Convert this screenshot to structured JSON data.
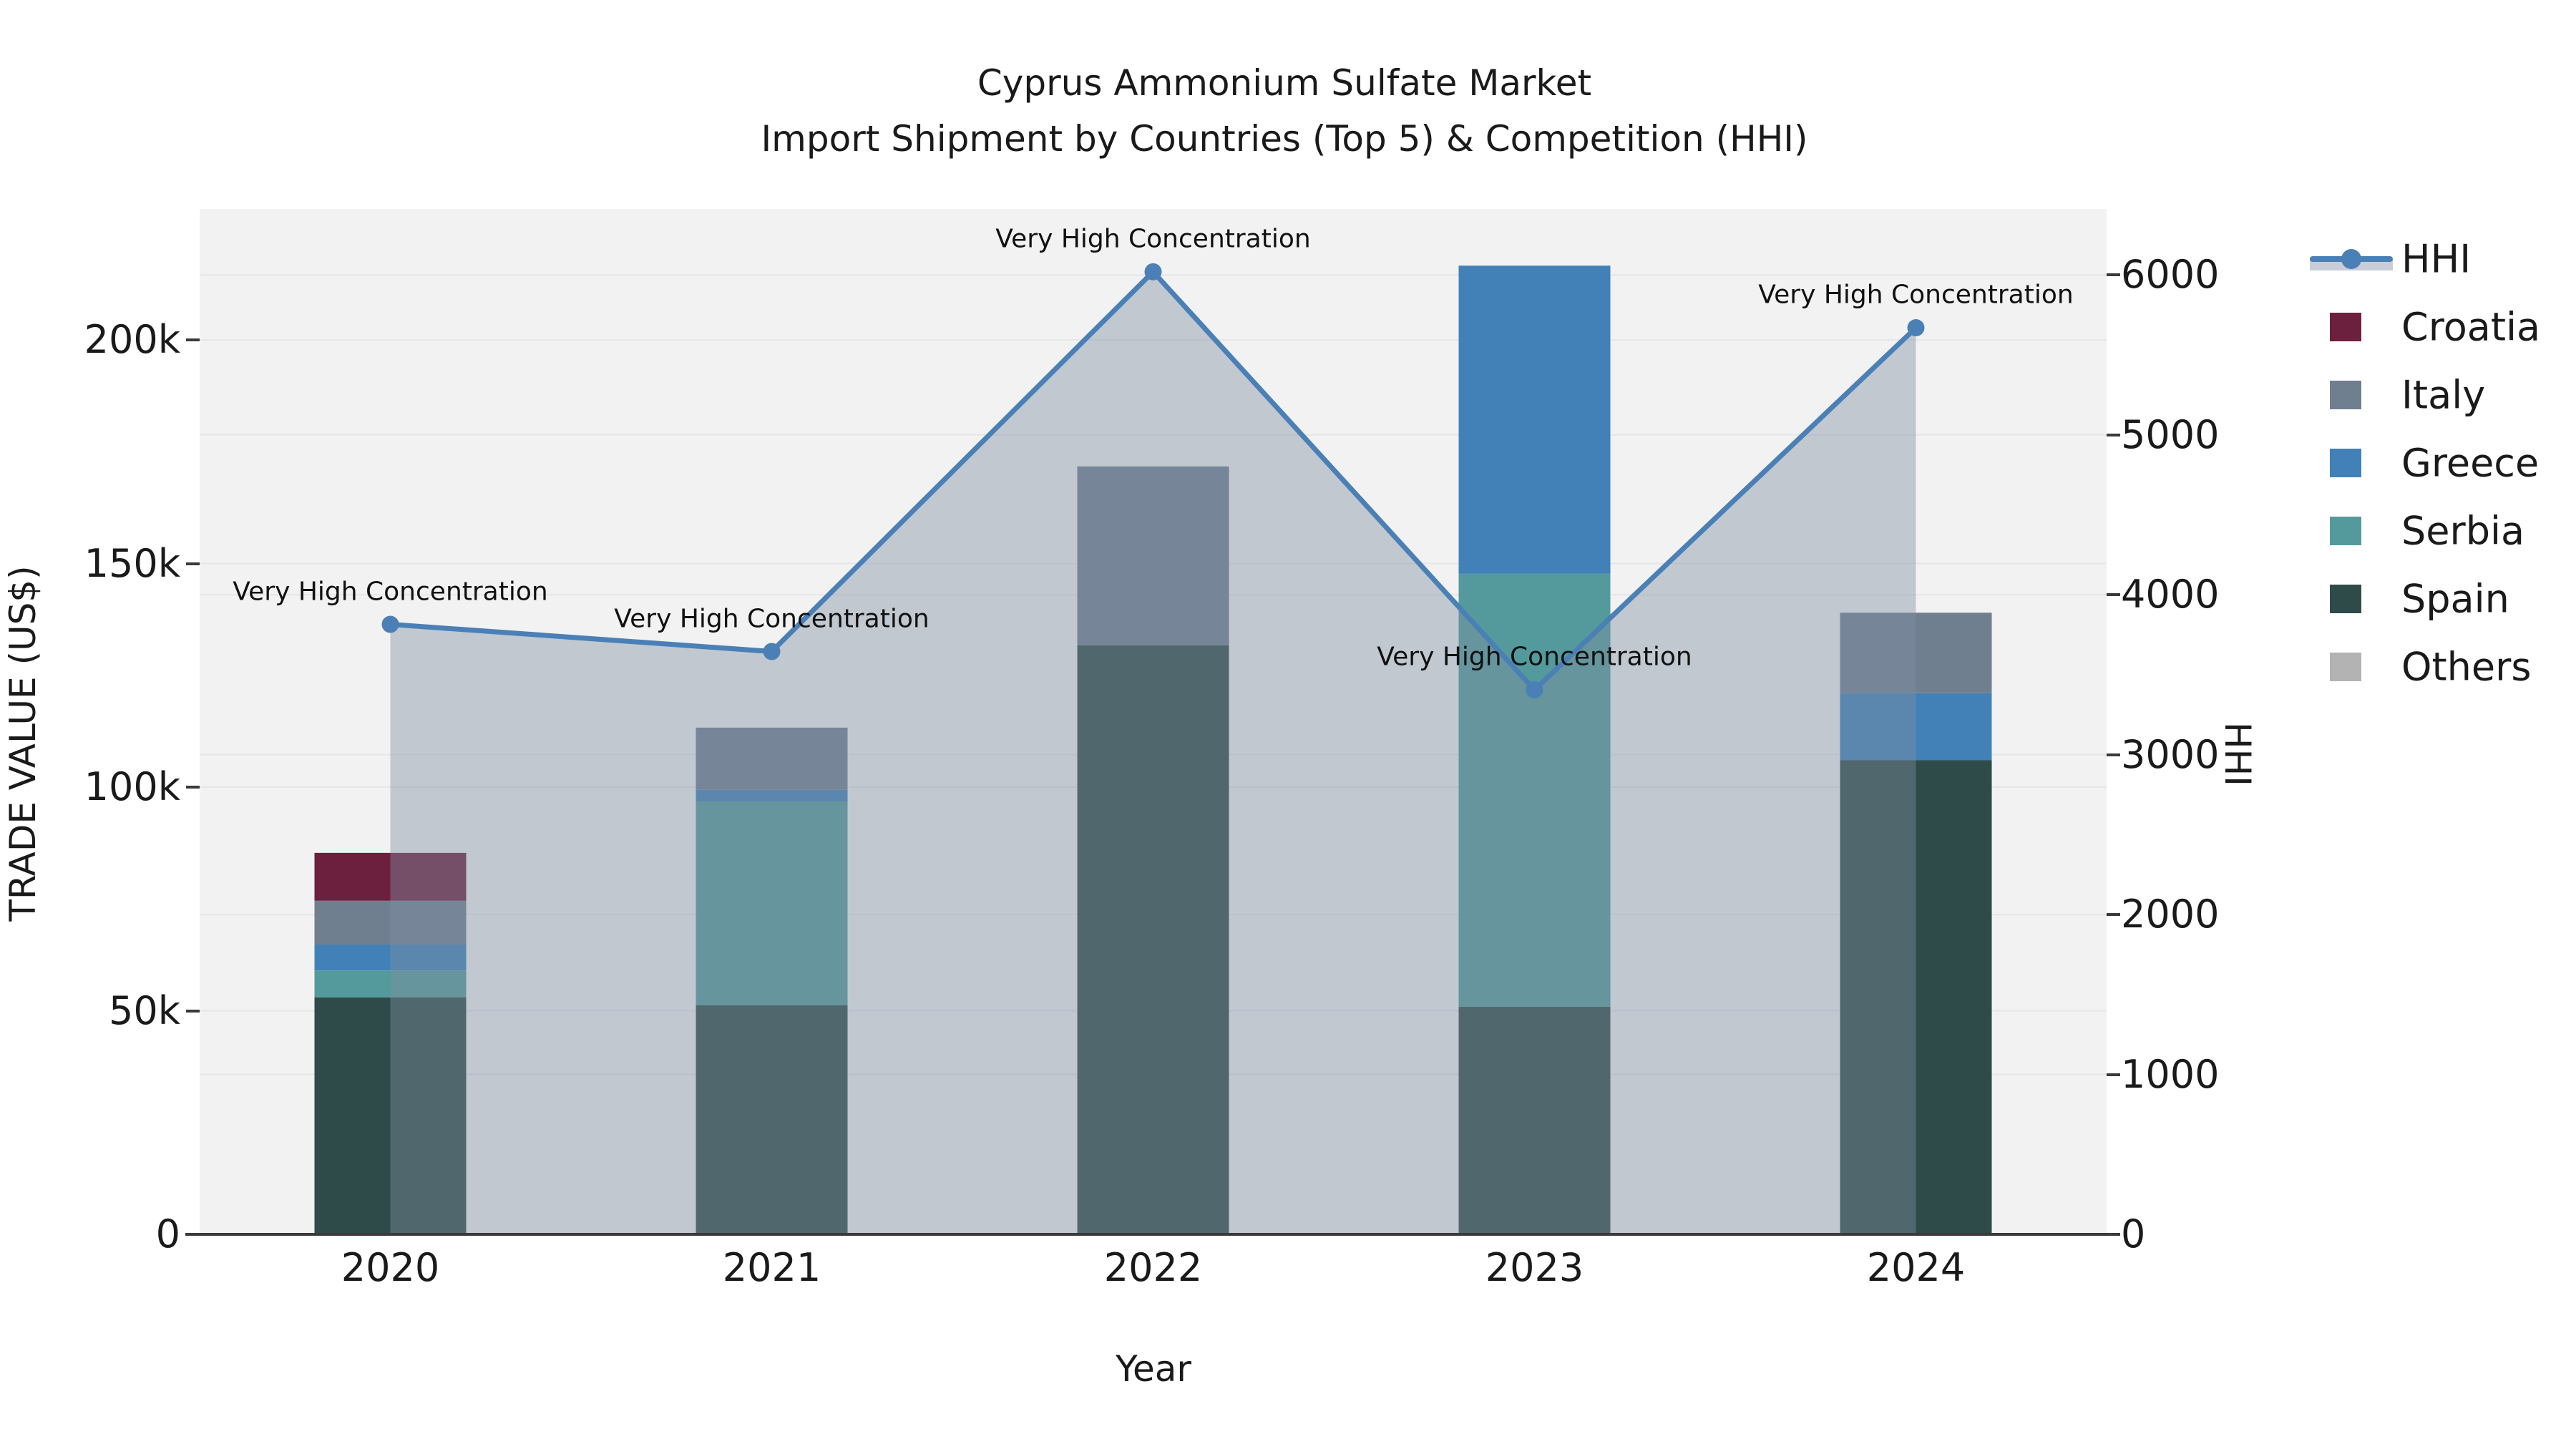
{
  "figure": {
    "title_line1": "Cyprus Ammonium Sulfate Market",
    "title_line2": "Import Shipment by Countries (Top 5) & Competition (HHI)",
    "xlabel": "Year",
    "ylabel_left": "TRADE VALUE (US$)",
    "ylabel_right": "HHI"
  },
  "chart_data": {
    "type": "bar",
    "subtype": "stacked-bars-with-line",
    "title": "Cyprus Ammonium Sulfate Market",
    "subtitle": "Import Shipment by Countries (Top 5) & Competition (HHI)",
    "xlabel": "Year",
    "ylabel": "TRADE VALUE (US$)",
    "ylabel_right": "HHI",
    "categories": [
      "2020",
      "2021",
      "2022",
      "2023",
      "2024"
    ],
    "series": [
      {
        "name": "Spain",
        "color": "#2f4b49",
        "values": [
          53000,
          51200,
          131700,
          50900,
          106000
        ]
      },
      {
        "name": "Serbia",
        "color": "#549a9c",
        "values": [
          6000,
          45600,
          0,
          96800,
          0
        ]
      },
      {
        "name": "Greece",
        "color": "#4181b8",
        "values": [
          5800,
          2600,
          0,
          68900,
          15000
        ]
      },
      {
        "name": "Italy",
        "color": "#6f7f90",
        "values": [
          9800,
          13900,
          40000,
          0,
          18000
        ]
      },
      {
        "name": "Croatia",
        "color": "#6d1f3e",
        "values": [
          10700,
          0,
          0,
          0,
          0
        ]
      },
      {
        "name": "Others",
        "color": "#b3b3b3",
        "values": [
          0,
          0,
          0,
          0,
          0
        ]
      }
    ],
    "bar_totals": [
      85300,
      113300,
      171700,
      216600,
      139000
    ],
    "line_series": {
      "name": "HHI",
      "axis": "right",
      "color": "#4a80b5",
      "area_fill": "rgba(128,142,163,0.42)",
      "values": [
        3815,
        3645,
        6020,
        3405,
        5670
      ]
    },
    "annotations": [
      {
        "year": "2020",
        "text": "Very High Concentration"
      },
      {
        "year": "2021",
        "text": "Very High Concentration"
      },
      {
        "year": "2022",
        "text": "Very High Concentration"
      },
      {
        "year": "2023",
        "text": "Very High Concentration"
      },
      {
        "year": "2024",
        "text": "Very High Concentration"
      }
    ],
    "axes": {
      "left": {
        "label": "TRADE VALUE (US$)",
        "max": 229280,
        "ticks": [
          {
            "v": 0,
            "label": "0"
          },
          {
            "v": 50000,
            "label": "50k"
          },
          {
            "v": 100000,
            "label": "100k"
          },
          {
            "v": 150000,
            "label": "150k"
          },
          {
            "v": 200000,
            "label": "200k"
          }
        ]
      },
      "right": {
        "label": "HHI",
        "max": 6413,
        "ticks": [
          {
            "v": 0,
            "label": "0"
          },
          {
            "v": 1000,
            "label": "1000"
          },
          {
            "v": 2000,
            "label": "2000"
          },
          {
            "v": 3000,
            "label": "3000"
          },
          {
            "v": 4000,
            "label": "4000"
          },
          {
            "v": 5000,
            "label": "5000"
          },
          {
            "v": 6000,
            "label": "6000"
          }
        ]
      }
    },
    "grid": true,
    "legend_position": "right",
    "legend": [
      {
        "label": "HHI",
        "type": "line",
        "color": "#4a80b5"
      },
      {
        "label": "Croatia",
        "type": "patch",
        "color": "#6d1f3e"
      },
      {
        "label": "Italy",
        "type": "patch",
        "color": "#6f7f90"
      },
      {
        "label": "Greece",
        "type": "patch",
        "color": "#4181b8"
      },
      {
        "label": "Serbia",
        "type": "patch",
        "color": "#549a9c"
      },
      {
        "label": "Spain",
        "type": "patch",
        "color": "#2f4b49"
      },
      {
        "label": "Others",
        "type": "patch",
        "color": "#b3b3b3"
      }
    ],
    "colors": {
      "plot_bg": "#f2f2f2",
      "grid": "#e4e6e8",
      "spine": "#3a3a3a"
    }
  }
}
